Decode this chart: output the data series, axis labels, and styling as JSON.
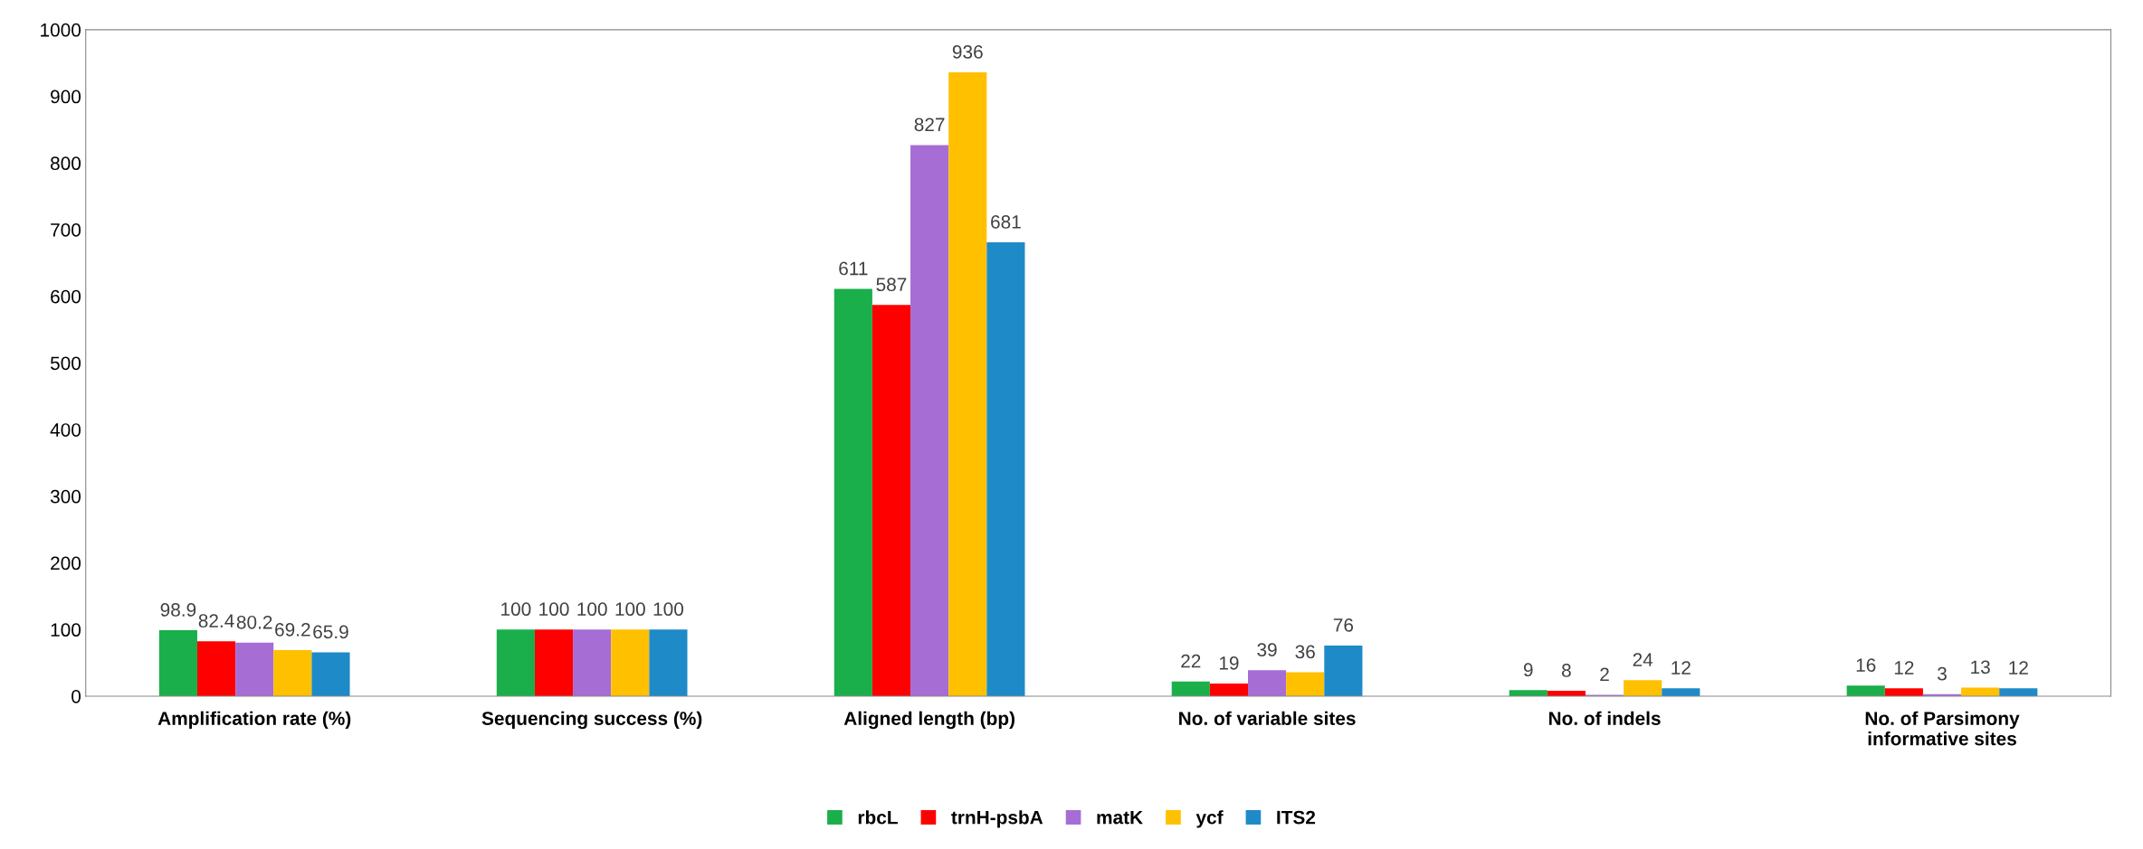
{
  "chart_data": {
    "type": "bar",
    "categories": [
      "Amplification rate (%)",
      "Sequencing success (%)",
      "Aligned length (bp)",
      "No. of variable sites",
      "No. of indels",
      "No. of Parsimony\ninformative sites"
    ],
    "series": [
      {
        "name": "rbcL",
        "color": "#1aaf4b",
        "values": [
          98.9,
          100,
          611,
          22,
          9,
          16
        ]
      },
      {
        "name": "trnH-psbA",
        "color": "#ff0000",
        "values": [
          82.4,
          100,
          587,
          19,
          8,
          12
        ]
      },
      {
        "name": "matK",
        "color": "#a66dd4",
        "values": [
          80.2,
          100,
          827,
          39,
          2,
          3
        ]
      },
      {
        "name": "ycf",
        "color": "#ffc000",
        "values": [
          69.2,
          100,
          936,
          36,
          24,
          13
        ]
      },
      {
        "name": "ITS2",
        "color": "#1f8ac8",
        "values": [
          65.9,
          100,
          681,
          76,
          12,
          12
        ]
      }
    ],
    "ylim": [
      0,
      1000
    ],
    "yticks": [
      0,
      100,
      200,
      300,
      400,
      500,
      600,
      700,
      800,
      900,
      1000
    ],
    "data_labels": true,
    "grid": false,
    "legend": "bottom"
  }
}
